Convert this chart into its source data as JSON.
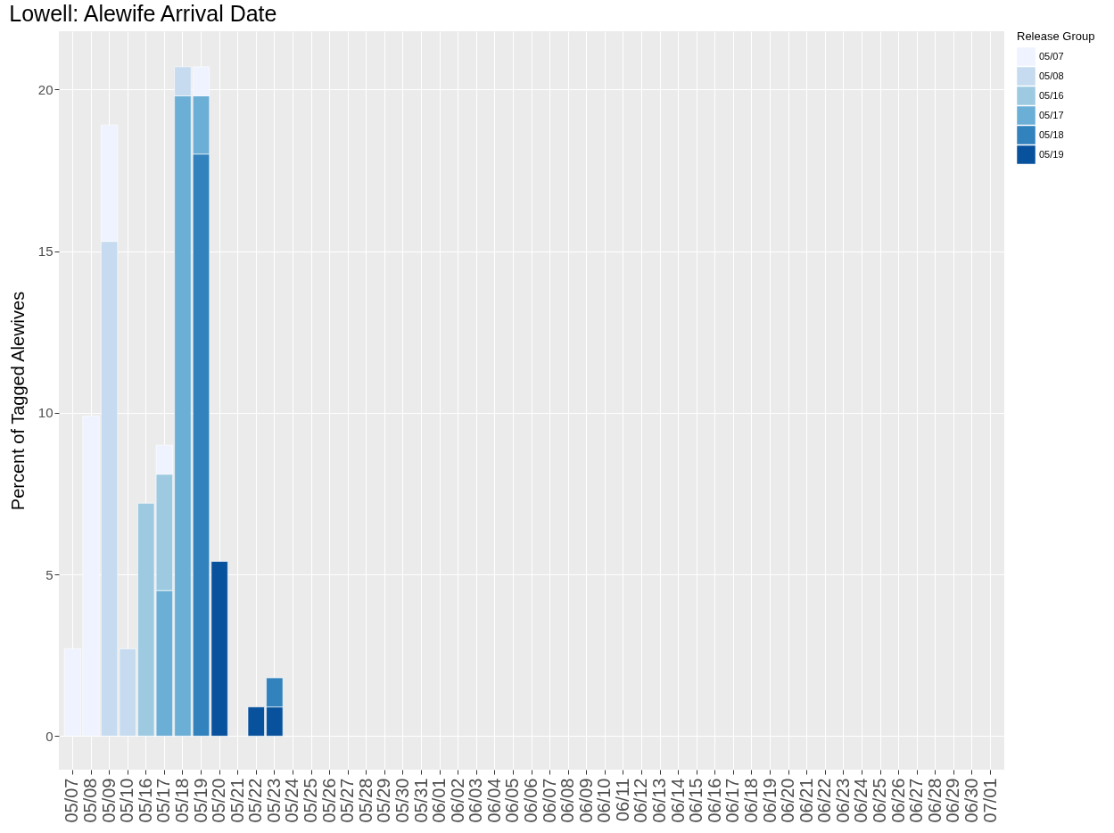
{
  "chart_data": {
    "type": "bar",
    "title": "Lowell: Alewife Arrival Date",
    "ylabel": "Percent of Tagged Alewives",
    "legend_title": "Release Group",
    "categories": [
      "05/07",
      "05/08",
      "05/09",
      "05/10",
      "05/16",
      "05/17",
      "05/18",
      "05/19",
      "05/20",
      "05/21",
      "05/22",
      "05/23",
      "05/24",
      "05/25",
      "05/26",
      "05/27",
      "05/28",
      "05/29",
      "05/30",
      "05/31",
      "06/01",
      "06/02",
      "06/03",
      "06/04",
      "06/05",
      "06/06",
      "06/07",
      "06/08",
      "06/09",
      "06/10",
      "06/11",
      "06/12",
      "06/13",
      "06/14",
      "06/15",
      "06/16",
      "06/17",
      "06/18",
      "06/19",
      "06/20",
      "06/21",
      "06/22",
      "06/23",
      "06/24",
      "06/25",
      "06/26",
      "06/27",
      "06/28",
      "06/29",
      "06/30",
      "07/01"
    ],
    "series": [
      {
        "name": "05/19",
        "color": "#08519c",
        "values": [
          null,
          null,
          null,
          null,
          null,
          null,
          null,
          null,
          5.4,
          null,
          0.9,
          0.9,
          null,
          null,
          null,
          null,
          null,
          null,
          null,
          null,
          null,
          null,
          null,
          null,
          null,
          null,
          null,
          null,
          null,
          null,
          null,
          null,
          null,
          null,
          null,
          null,
          null,
          null,
          null,
          null,
          null,
          null,
          null,
          null,
          null,
          null,
          null,
          null,
          null,
          null,
          null
        ]
      },
      {
        "name": "05/18",
        "color": "#3182bd",
        "values": [
          null,
          null,
          null,
          null,
          null,
          null,
          null,
          18.0,
          null,
          null,
          null,
          0.9,
          null,
          null,
          null,
          null,
          null,
          null,
          null,
          null,
          null,
          null,
          null,
          null,
          null,
          null,
          null,
          null,
          null,
          null,
          null,
          null,
          null,
          null,
          null,
          null,
          null,
          null,
          null,
          null,
          null,
          null,
          null,
          null,
          null,
          null,
          null,
          null,
          null,
          null,
          null
        ]
      },
      {
        "name": "05/17",
        "color": "#6baed6",
        "values": [
          null,
          null,
          null,
          null,
          null,
          4.5,
          19.8,
          1.8,
          null,
          null,
          null,
          null,
          null,
          null,
          null,
          null,
          null,
          null,
          null,
          null,
          null,
          null,
          null,
          null,
          null,
          null,
          null,
          null,
          null,
          null,
          null,
          null,
          null,
          null,
          null,
          null,
          null,
          null,
          null,
          null,
          null,
          null,
          null,
          null,
          null,
          null,
          null,
          null,
          null,
          null,
          null
        ]
      },
      {
        "name": "05/16",
        "color": "#9ecae1",
        "values": [
          null,
          null,
          null,
          null,
          7.2,
          3.6,
          null,
          null,
          null,
          null,
          null,
          null,
          null,
          null,
          null,
          null,
          null,
          null,
          null,
          null,
          null,
          null,
          null,
          null,
          null,
          null,
          null,
          null,
          null,
          null,
          null,
          null,
          null,
          null,
          null,
          null,
          null,
          null,
          null,
          null,
          null,
          null,
          null,
          null,
          null,
          null,
          null,
          null,
          null,
          null,
          null
        ]
      },
      {
        "name": "05/08",
        "color": "#c6dbef",
        "values": [
          null,
          null,
          15.3,
          2.7,
          null,
          null,
          0.9,
          null,
          null,
          null,
          null,
          null,
          null,
          null,
          null,
          null,
          null,
          null,
          null,
          null,
          null,
          null,
          null,
          null,
          null,
          null,
          null,
          null,
          null,
          null,
          null,
          null,
          null,
          null,
          null,
          null,
          null,
          null,
          null,
          null,
          null,
          null,
          null,
          null,
          null,
          null,
          null,
          null,
          null,
          null,
          null
        ]
      },
      {
        "name": "05/07",
        "color": "#eff3ff",
        "values": [
          2.7,
          9.9,
          3.6,
          null,
          null,
          0.9,
          null,
          0.9,
          null,
          null,
          null,
          null,
          null,
          null,
          null,
          null,
          null,
          null,
          null,
          null,
          null,
          null,
          null,
          null,
          null,
          null,
          null,
          null,
          null,
          null,
          null,
          null,
          null,
          null,
          null,
          null,
          null,
          null,
          null,
          null,
          null,
          null,
          null,
          null,
          null,
          null,
          null,
          null,
          null,
          null,
          null
        ]
      }
    ],
    "stacked": true,
    "ylim": [
      -1.04,
      21.8
    ],
    "yticks": [
      0,
      5,
      10,
      15,
      20
    ],
    "grid": true,
    "legend": "right"
  }
}
